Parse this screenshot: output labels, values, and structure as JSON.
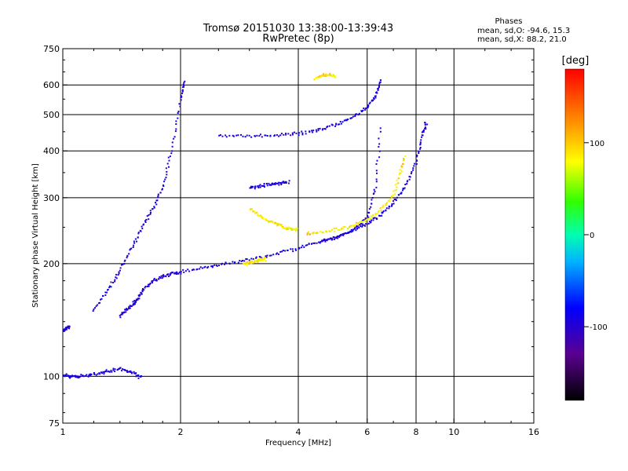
{
  "chart_data": {
    "type": "scatter",
    "title": "Tromsø 20151030 13:38:00-13:39:43",
    "subtitle": "RwPretec (8p)",
    "xlabel": "Frequency [MHz]",
    "ylabel": "Stationary phase Virtual Height [km]",
    "x_scale": "log",
    "y_scale": "log",
    "xlim": [
      1,
      16
    ],
    "ylim": [
      75,
      750
    ],
    "x_ticks": [
      "1",
      "2",
      "4",
      "6",
      "8",
      "10",
      "16"
    ],
    "y_ticks": [
      "75",
      "100",
      "200",
      "300",
      "400",
      "500",
      "600",
      "750"
    ],
    "x_gridlines": [
      2,
      4,
      6,
      8,
      10
    ],
    "y_gridlines": [
      100,
      200,
      300,
      400,
      500,
      600
    ],
    "phases_header": "Phases",
    "phase_stats": [
      "mean, sd,O: -94.6, 15.3",
      "mean, sd,X:  88.2, 21.0"
    ],
    "colorbar": {
      "label": "[deg]",
      "range": [
        -180,
        180
      ],
      "ticks": [
        "100",
        "0",
        "-100"
      ],
      "tick_values": [
        100,
        0,
        -100
      ]
    },
    "series": [
      {
        "name": "O",
        "phase_mean": -94.6,
        "phase_sd": 15.3,
        "traces": [
          {
            "x": [
              1.0,
              1.05,
              1.1,
              1.2,
              1.3,
              1.4,
              1.5,
              1.6
            ],
            "y": [
              101,
              100,
              100,
              101,
              103,
              105,
              102,
              99
            ]
          },
          {
            "x": [
              1.0,
              1.02,
              1.04
            ],
            "y": [
              133,
              134,
              136
            ]
          },
          {
            "x": [
              1.4,
              1.45,
              1.5,
              1.55,
              1.6,
              1.7,
              1.8,
              1.9,
              2.0,
              2.3,
              2.6,
              3.0,
              3.5,
              4.0,
              4.5,
              5.0,
              5.5,
              6.0,
              6.3,
              6.5
            ],
            "y": [
              145,
              150,
              155,
              160,
              170,
              180,
              185,
              188,
              190,
              195,
              200,
              205,
              213,
              220,
              228,
              235,
              245,
              265,
              320,
              470
            ]
          },
          {
            "x": [
              2.5,
              3.0,
              3.5,
              4.0,
              4.5,
              5.0,
              5.5,
              6.0,
              6.3,
              6.5
            ],
            "y": [
              440,
              438,
              440,
              445,
              455,
              470,
              490,
              520,
              560,
              620
            ]
          },
          {
            "x": [
              4.6,
              5.0,
              5.5,
              6.0,
              6.5,
              7.0,
              7.5,
              8.0,
              8.3,
              8.5
            ],
            "y": [
              230,
              235,
              245,
              255,
              270,
              290,
              320,
              370,
              440,
              480
            ]
          },
          {
            "x": [
              3.0,
              3.2,
              3.4,
              3.6,
              3.8
            ],
            "y": [
              320,
              322,
              325,
              328,
              330
            ]
          },
          {
            "x": [
              1.2,
              1.3,
              1.4,
              1.5,
              1.6,
              1.7,
              1.8,
              1.9,
              2.0,
              2.05
            ],
            "y": [
              150,
              170,
              190,
              220,
              250,
              280,
              320,
              400,
              550,
              620
            ]
          }
        ]
      },
      {
        "name": "X",
        "phase_mean": 88.2,
        "phase_sd": 21.0,
        "traces": [
          {
            "x": [
              2.9,
              3.0,
              3.1,
              3.2,
              3.3
            ],
            "y": [
              200,
              201,
              203,
              204,
              206
            ]
          },
          {
            "x": [
              3.0,
              3.2,
              3.4,
              3.6,
              3.8,
              4.0
            ],
            "y": [
              280,
              268,
              258,
              252,
              248,
              246
            ]
          },
          {
            "x": [
              4.2,
              4.5,
              5.0,
              5.5,
              6.0,
              6.5,
              7.0,
              7.3,
              7.5
            ],
            "y": [
              240,
              242,
              246,
              252,
              262,
              278,
              305,
              350,
              390
            ]
          },
          {
            "x": [
              4.4,
              4.6,
              4.8,
              5.0
            ],
            "y": [
              620,
              635,
              640,
              630
            ]
          }
        ]
      }
    ]
  }
}
